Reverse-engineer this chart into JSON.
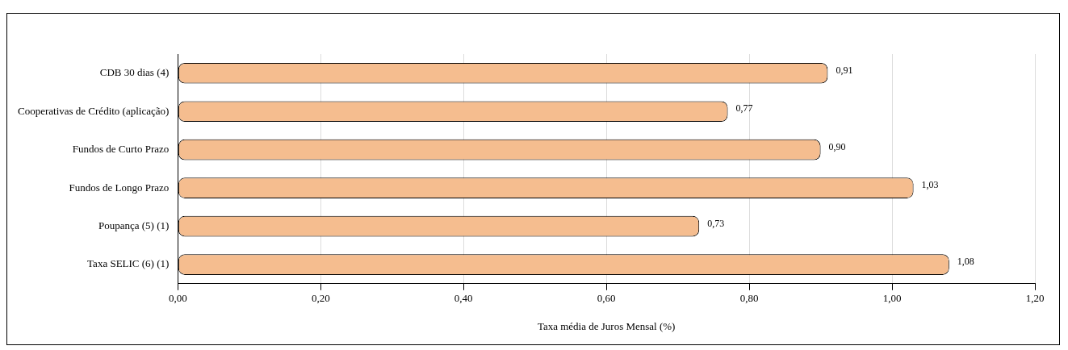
{
  "chart_data": {
    "type": "bar",
    "orientation": "horizontal",
    "xlabel": "Taxa média de Juros Mensal (%)",
    "categories": [
      "CDB 30 dias (4)",
      "Cooperativas de Crédito (aplicação)",
      "Fundos de Curto Prazo",
      "Fundos de Longo Prazo",
      "Poupança (5) (1)",
      "Taxa SELIC (6) (1)"
    ],
    "values": [
      0.91,
      0.77,
      0.9,
      1.03,
      0.73,
      1.08
    ],
    "value_labels": [
      "0,91",
      "0,77",
      "0,90",
      "1,03",
      "0,73",
      "1,08"
    ],
    "color": "#f5bd8f",
    "xlim": [
      0,
      1.2
    ],
    "xticks": [
      {
        "value": 0,
        "label": "0,00"
      },
      {
        "value": 0.2,
        "label": "0,20"
      },
      {
        "value": 0.4,
        "label": "0,40"
      },
      {
        "value": 0.6,
        "label": "0,60"
      },
      {
        "value": 0.8,
        "label": "0,80"
      },
      {
        "value": 1.0,
        "label": "1,00"
      },
      {
        "value": 1.2,
        "label": "1,20"
      }
    ],
    "grid": "x",
    "legend": false
  }
}
